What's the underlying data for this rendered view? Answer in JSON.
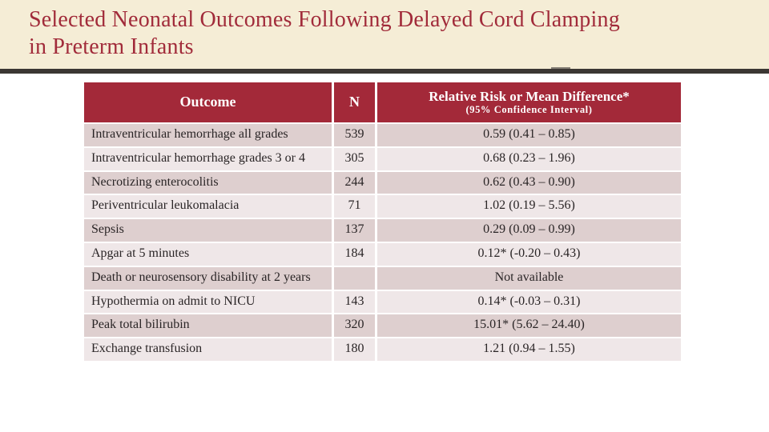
{
  "slide": {
    "title_line1": "Selected Neonatal Outcomes Following Delayed Cord Clamping",
    "title_line2": "in Preterm Infants"
  },
  "colors": {
    "title_text": "#A12B3A",
    "title_band_bg": "#F5EDD6",
    "divider": "#3B3733",
    "table_header_bg": "#A32939",
    "table_header_text": "#FFFFFF",
    "row_pink": "#DECFCF",
    "row_light": "#EFE7E8",
    "body_text": "#2A2526"
  },
  "table": {
    "headers": {
      "outcome": "Outcome",
      "n": "N",
      "rr_line1": "Relative Risk or Mean Difference*",
      "rr_line2": "(95% Confidence Interval)"
    },
    "rows": [
      {
        "outcome": "Intraventricular hemorrhage all grades",
        "n": "539",
        "value": "0.59 (0.41 – 0.85)"
      },
      {
        "outcome": "Intraventricular hemorrhage grades 3 or 4",
        "n": "305",
        "value": "0.68 (0.23 – 1.96)"
      },
      {
        "outcome": "Necrotizing enterocolitis",
        "n": "244",
        "value": "0.62 (0.43 – 0.90)"
      },
      {
        "outcome": "Periventricular leukomalacia",
        "n": "71",
        "value": "1.02 (0.19 – 5.56)"
      },
      {
        "outcome": "Sepsis",
        "n": "137",
        "value": "0.29 (0.09 – 0.99)"
      },
      {
        "outcome": "Apgar at 5 minutes",
        "n": "184",
        "value": "0.12* (-0.20 – 0.43)"
      },
      {
        "outcome": "Death or neurosensory disability at 2 years",
        "n": "",
        "value": "Not available"
      },
      {
        "outcome": "Hypothermia on admit to NICU",
        "n": "143",
        "value": "0.14* (-0.03 – 0.31)"
      },
      {
        "outcome": "Peak total bilirubin",
        "n": "320",
        "value": "15.01* (5.62 – 24.40)"
      },
      {
        "outcome": "Exchange transfusion",
        "n": "180",
        "value": "1.21 (0.94 – 1.55)"
      }
    ]
  }
}
